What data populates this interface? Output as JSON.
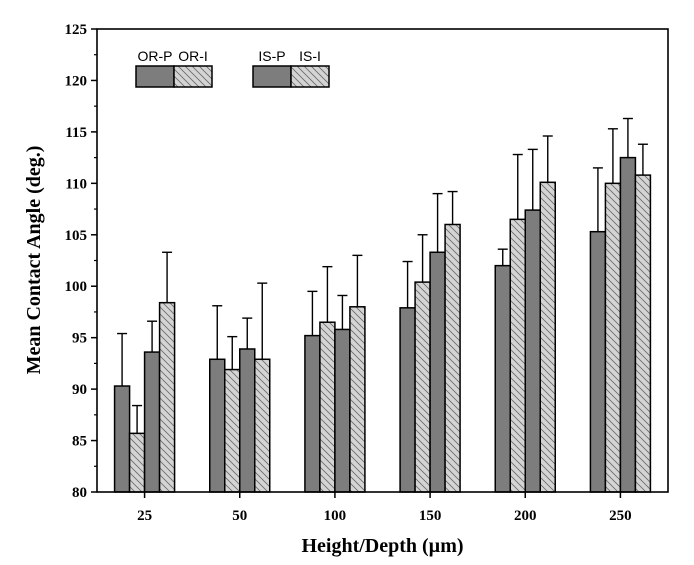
{
  "chart_data": {
    "type": "bar",
    "title": "",
    "xlabel": "Height/Depth (µm)",
    "ylabel": "Mean Contact Angle (deg.)",
    "ylim": [
      80,
      125
    ],
    "yticks": [
      80,
      85,
      90,
      95,
      100,
      105,
      110,
      115,
      120,
      125
    ],
    "categories": [
      "25",
      "50",
      "100",
      "150",
      "200",
      "250"
    ],
    "grid": false,
    "legend_placement": "top-left",
    "series": [
      {
        "name": "OR-P",
        "fill": "#7d7d7d",
        "pattern": "solid",
        "values": [
          90.3,
          92.9,
          95.2,
          97.9,
          102.0,
          105.3
        ],
        "errors": [
          5.1,
          5.2,
          4.3,
          4.5,
          1.6,
          6.2
        ]
      },
      {
        "name": "OR-I",
        "fill": "#d2d2d2",
        "pattern": "hatched",
        "values": [
          85.7,
          91.9,
          96.5,
          100.4,
          106.5,
          110.0
        ],
        "errors": [
          2.7,
          3.2,
          5.4,
          4.6,
          6.3,
          5.3
        ]
      },
      {
        "name": "IS-P",
        "fill": "#7d7d7d",
        "pattern": "solid",
        "values": [
          93.6,
          93.9,
          95.8,
          103.3,
          107.4,
          112.5
        ],
        "errors": [
          3.0,
          3.0,
          3.3,
          5.7,
          5.9,
          3.8
        ]
      },
      {
        "name": "IS-I",
        "fill": "#d2d2d2",
        "pattern": "hatched",
        "values": [
          98.4,
          92.9,
          98.0,
          106.0,
          110.1,
          110.8
        ],
        "errors": [
          4.9,
          7.4,
          5.0,
          3.2,
          4.5,
          3.0
        ]
      }
    ]
  }
}
